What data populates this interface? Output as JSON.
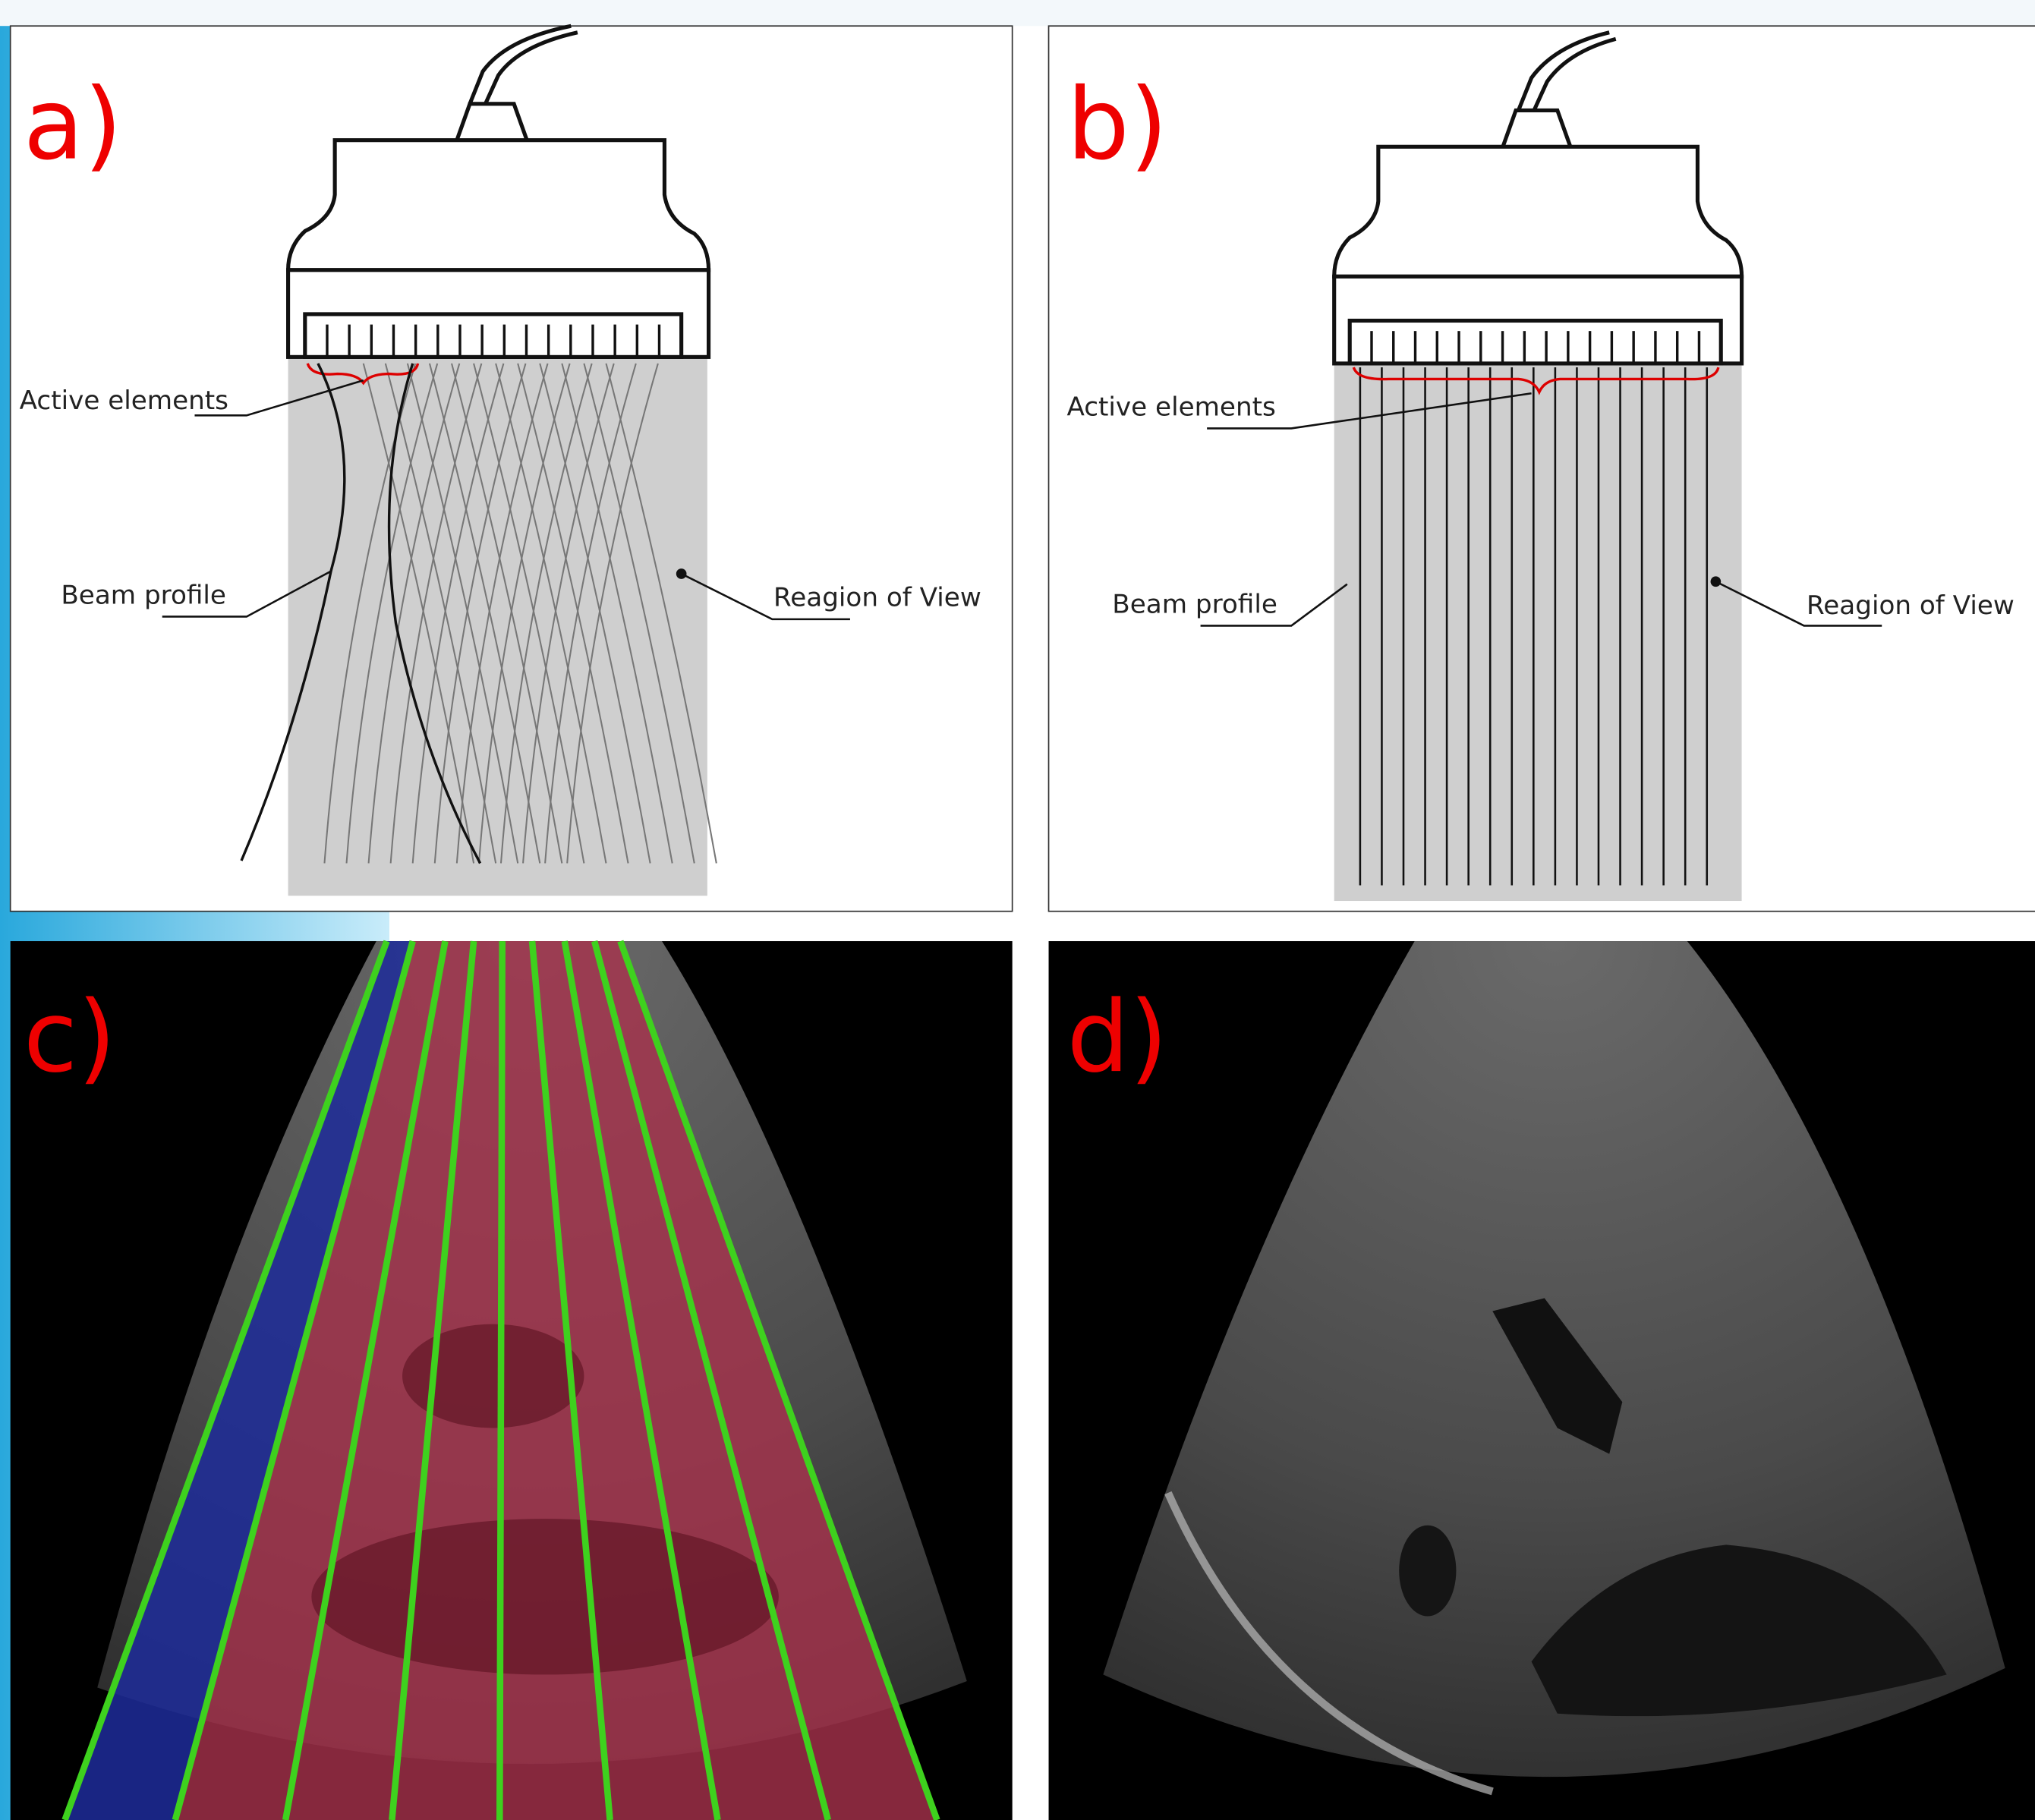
{
  "panels": [
    {
      "label": "a)",
      "active_elements": "Active elements",
      "beam_profile": "Beam profile",
      "region": "Reagion of View"
    },
    {
      "label": "b)",
      "active_elements": "Active elements",
      "beam_profile": "Beam profile",
      "region": "Reagion of View"
    },
    {
      "label": "c)"
    },
    {
      "label": "d)"
    }
  ]
}
